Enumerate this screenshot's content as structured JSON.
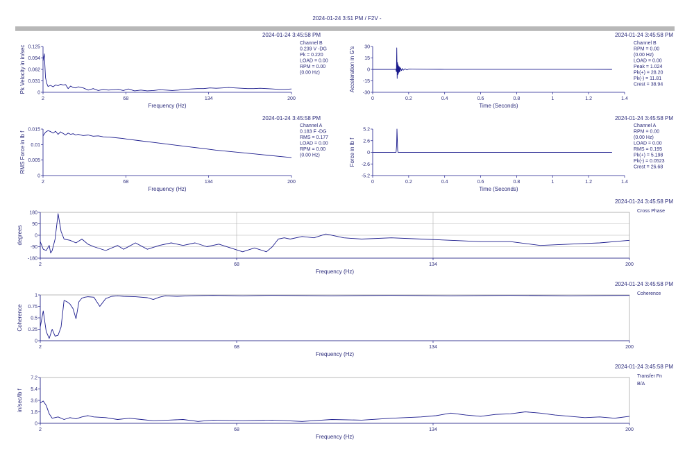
{
  "header": {
    "title": "2024-01-24 3:51 PM / F2V -"
  },
  "colors": {
    "trace": "#1a1a8c",
    "axis": "#1a1a8c",
    "text": "#2a2a7a",
    "grid": "#b0b0b0",
    "frame": "#8a8a8a"
  },
  "chart_data": [
    {
      "id": "pk_velocity",
      "type": "line",
      "timestamp": "2024-01-24 3:45:58 PM",
      "title": "",
      "xlabel": "Frequency (Hz)",
      "ylabel": "Pk Velocity in in/sec",
      "xlim": [
        2,
        200
      ],
      "ylim": [
        0,
        0.125
      ],
      "xticks": [
        "2",
        "68",
        "134",
        "200"
      ],
      "yticks": [
        "0.125",
        "0.094",
        "0.062",
        "0.031",
        "0"
      ],
      "info": [
        "Channel B",
        "0.239 V -DG",
        "Pk = 0.220",
        "LOAD = 0.00",
        "RPM = 0.00",
        "(0.00 Hz)"
      ],
      "x": [
        2,
        3,
        4,
        5,
        6,
        8,
        10,
        12,
        14,
        16,
        18,
        20,
        22,
        24,
        26,
        28,
        30,
        34,
        38,
        42,
        46,
        50,
        54,
        58,
        62,
        66,
        70,
        75,
        80,
        85,
        90,
        95,
        100,
        105,
        110,
        115,
        120,
        125,
        130,
        135,
        140,
        145,
        150,
        155,
        160,
        165,
        170,
        175,
        180,
        185,
        190,
        195,
        200
      ],
      "y": [
        0.085,
        0.105,
        0.04,
        0.024,
        0.016,
        0.019,
        0.015,
        0.02,
        0.018,
        0.022,
        0.02,
        0.021,
        0.01,
        0.017,
        0.013,
        0.012,
        0.015,
        0.012,
        0.006,
        0.01,
        0.005,
        0.008,
        0.006,
        0.007,
        0.008,
        0.005,
        0.009,
        0.004,
        0.006,
        0.004,
        0.005,
        0.007,
        0.006,
        0.005,
        0.006,
        0.008,
        0.009,
        0.01,
        0.01,
        0.012,
        0.011,
        0.012,
        0.013,
        0.012,
        0.011,
        0.01,
        0.01,
        0.011,
        0.01,
        0.009,
        0.008,
        0.008,
        0.009
      ]
    },
    {
      "id": "acceleration",
      "type": "line",
      "timestamp": "2024-01-24 3:45:58 PM",
      "title": "",
      "xlabel": "Time (Seconds)",
      "ylabel": "Acceleration in G's",
      "xlim": [
        0,
        1.4
      ],
      "ylim": [
        -30,
        30
      ],
      "xticks": [
        "0",
        "0.2",
        "0.4",
        "0.6",
        "0.8",
        "1",
        "1.2",
        "1.4"
      ],
      "yticks": [
        "30",
        "15",
        "0",
        "-15",
        "-30"
      ],
      "info": [
        "Channel B",
        "RPM = 0.00",
        "(0.00 Hz)",
        "LOAD = 0.00",
        "Peak = 1.024",
        "Pk(+) = 28.20",
        "Pk(-) = 11.81",
        "Crest = 38.94"
      ],
      "x": [
        0,
        0.12,
        0.128,
        0.132,
        0.134,
        0.136,
        0.138,
        0.14,
        0.142,
        0.144,
        0.146,
        0.148,
        0.15,
        0.152,
        0.155,
        0.16,
        0.165,
        0.17,
        0.18,
        0.19,
        0.2,
        0.22,
        0.25,
        0.3,
        0.4,
        0.6,
        0.8,
        1.0,
        1.2,
        1.33
      ],
      "y": [
        0,
        0,
        0.5,
        -3,
        28.2,
        -11.8,
        9,
        -7,
        6,
        -5,
        4,
        -3.5,
        3,
        -2.5,
        2,
        -1.5,
        1.2,
        -1,
        0.8,
        -0.6,
        0.5,
        0.4,
        0.3,
        0.2,
        0.1,
        0.1,
        0.1,
        0.1,
        0.1,
        0
      ]
    },
    {
      "id": "rms_force",
      "type": "line",
      "timestamp": "2024-01-24 3:45:58 PM",
      "title": "",
      "xlabel": "Frequency (Hz)",
      "ylabel": "RMS Force in lb f",
      "xlim": [
        2,
        200
      ],
      "ylim": [
        0,
        0.015
      ],
      "xticks": [
        "2",
        "68",
        "134",
        "200"
      ],
      "yticks": [
        "0.015",
        "0.01",
        "0.005",
        "0"
      ],
      "info": [
        "Channel A",
        "0.183 F -DG",
        "RMS = 0.177",
        "LOAD = 0.00",
        "RPM = 0.00",
        "(0.00 Hz)"
      ],
      "x": [
        2,
        4,
        6,
        8,
        10,
        12,
        14,
        16,
        18,
        20,
        22,
        24,
        26,
        28,
        30,
        34,
        38,
        42,
        46,
        50,
        55,
        60,
        65,
        70,
        80,
        90,
        100,
        110,
        120,
        130,
        140,
        150,
        160,
        170,
        180,
        190,
        200
      ],
      "y": [
        0.0128,
        0.014,
        0.0145,
        0.0142,
        0.0137,
        0.0143,
        0.0133,
        0.0141,
        0.0136,
        0.0131,
        0.0137,
        0.0133,
        0.0135,
        0.0131,
        0.0133,
        0.0129,
        0.0131,
        0.0127,
        0.0128,
        0.0125,
        0.0124,
        0.0122,
        0.012,
        0.0117,
        0.0112,
        0.0107,
        0.0102,
        0.0097,
        0.0092,
        0.0087,
        0.0082,
        0.0078,
        0.0074,
        0.007,
        0.0066,
        0.0062,
        0.0058
      ]
    },
    {
      "id": "force",
      "type": "line",
      "timestamp": "2024-01-24 3:45:58 PM",
      "title": "",
      "xlabel": "Time (Seconds)",
      "ylabel": "Force in lb f",
      "xlim": [
        0,
        1.4
      ],
      "ylim": [
        -5.2,
        5.2
      ],
      "xticks": [
        "0",
        "0.2",
        "0.4",
        "0.6",
        "0.8",
        "1",
        "1.2",
        "1.4"
      ],
      "yticks": [
        "5.2",
        "2.6",
        "0",
        "-2.6",
        "-5.2"
      ],
      "info": [
        "Channel A",
        "RPM = 0.00",
        "(0.00 Hz)",
        "LOAD = 0.00",
        "RMS = 0.195",
        "Pk(+) = 5.198",
        "Pk(-) = 0.0523",
        "Crest = 26.68"
      ],
      "x": [
        0,
        0.13,
        0.133,
        0.135,
        0.137,
        0.139,
        0.141,
        0.143,
        0.2,
        0.6,
        1.0,
        1.33
      ],
      "y": [
        0,
        0,
        1.5,
        5.2,
        3.0,
        0.5,
        -0.05,
        0,
        0,
        0,
        0,
        0
      ]
    },
    {
      "id": "cross_phase",
      "type": "line",
      "timestamp": "2024-01-24 3:45:58 PM",
      "title": "Cross Phase",
      "xlabel": "Frequency (Hz)",
      "ylabel": "degrees",
      "xlim": [
        2,
        200
      ],
      "ylim": [
        -180,
        180
      ],
      "grid": true,
      "xticks": [
        "2",
        "68",
        "134",
        "200"
      ],
      "yticks": [
        "180",
        "90",
        "0",
        "-90",
        "-180"
      ],
      "info": [],
      "x": [
        2,
        3,
        4,
        5,
        5.5,
        6,
        7,
        8,
        9,
        10,
        12,
        14,
        16,
        18,
        20,
        24,
        28,
        30,
        34,
        38,
        42,
        46,
        50,
        54,
        58,
        62,
        66,
        70,
        74,
        78,
        80,
        82,
        84,
        86,
        90,
        94,
        98,
        104,
        110,
        120,
        130,
        140,
        150,
        160,
        170,
        180,
        190,
        200
      ],
      "y": [
        -50,
        -110,
        -120,
        -80,
        -140,
        -120,
        -30,
        170,
        30,
        -30,
        -40,
        -60,
        -30,
        -70,
        -90,
        -120,
        -80,
        -110,
        -60,
        -110,
        -80,
        -60,
        -80,
        -60,
        -90,
        -70,
        -100,
        -130,
        -100,
        -130,
        -90,
        -30,
        -20,
        -30,
        -10,
        -20,
        10,
        -20,
        -30,
        -20,
        -30,
        -40,
        -50,
        -50,
        -80,
        -70,
        -60,
        -40
      ]
    },
    {
      "id": "coherence",
      "type": "line",
      "timestamp": "2024-01-24 3:45:58 PM",
      "title": "Coherence",
      "xlabel": "Frequency (Hz)",
      "ylabel": "Coherence",
      "xlim": [
        2,
        200
      ],
      "ylim": [
        0,
        1
      ],
      "xticks": [
        "2",
        "68",
        "134",
        "200"
      ],
      "yticks": [
        "1",
        "0.75",
        "0.5",
        "0.25",
        "0"
      ],
      "info": [],
      "x": [
        2,
        3,
        4,
        5,
        6,
        7,
        8,
        9,
        10,
        11,
        12,
        13,
        14,
        15,
        16,
        17,
        18,
        20,
        22,
        24,
        26,
        28,
        30,
        34,
        38,
        40,
        42,
        44,
        48,
        52,
        60,
        70,
        80,
        100,
        120,
        140,
        160,
        180,
        200
      ],
      "y": [
        0.3,
        0.65,
        0.2,
        0.05,
        0.25,
        0.1,
        0.12,
        0.3,
        0.88,
        0.85,
        0.8,
        0.7,
        0.48,
        0.85,
        0.93,
        0.95,
        0.96,
        0.95,
        0.75,
        0.92,
        0.97,
        0.98,
        0.97,
        0.96,
        0.94,
        0.9,
        0.95,
        0.98,
        0.97,
        0.98,
        0.99,
        0.98,
        0.99,
        0.98,
        0.99,
        0.98,
        0.99,
        0.98,
        0.99
      ]
    },
    {
      "id": "transfer_fn",
      "type": "line",
      "timestamp": "2024-01-24 3:45:58 PM",
      "title": "Transfer Fn",
      "subtitle": "B/A",
      "xlabel": "Frequency (Hz)",
      "ylabel": "in/sec/lb f",
      "xlim": [
        2,
        200
      ],
      "ylim": [
        0,
        7.2
      ],
      "xticks": [
        "2",
        "68",
        "134",
        "200"
      ],
      "yticks": [
        "7.2",
        "5.4",
        "3.6",
        "1.8",
        "0"
      ],
      "info": [],
      "x": [
        2,
        3,
        4,
        5,
        6,
        8,
        10,
        12,
        14,
        16,
        18,
        20,
        24,
        28,
        32,
        36,
        40,
        45,
        50,
        55,
        60,
        70,
        80,
        90,
        100,
        110,
        120,
        130,
        135,
        140,
        145,
        150,
        155,
        160,
        165,
        170,
        175,
        180,
        185,
        190,
        195,
        200
      ],
      "y": [
        3.2,
        3.5,
        2.8,
        1.5,
        0.8,
        1.0,
        0.6,
        0.9,
        0.7,
        1.0,
        1.2,
        1.0,
        0.9,
        0.6,
        0.8,
        0.6,
        0.4,
        0.5,
        0.6,
        0.3,
        0.5,
        0.4,
        0.5,
        0.3,
        0.6,
        0.5,
        0.8,
        1.0,
        1.2,
        1.6,
        1.3,
        1.1,
        1.4,
        1.5,
        1.8,
        1.6,
        1.3,
        1.1,
        0.9,
        1.0,
        0.8,
        1.1
      ]
    }
  ]
}
